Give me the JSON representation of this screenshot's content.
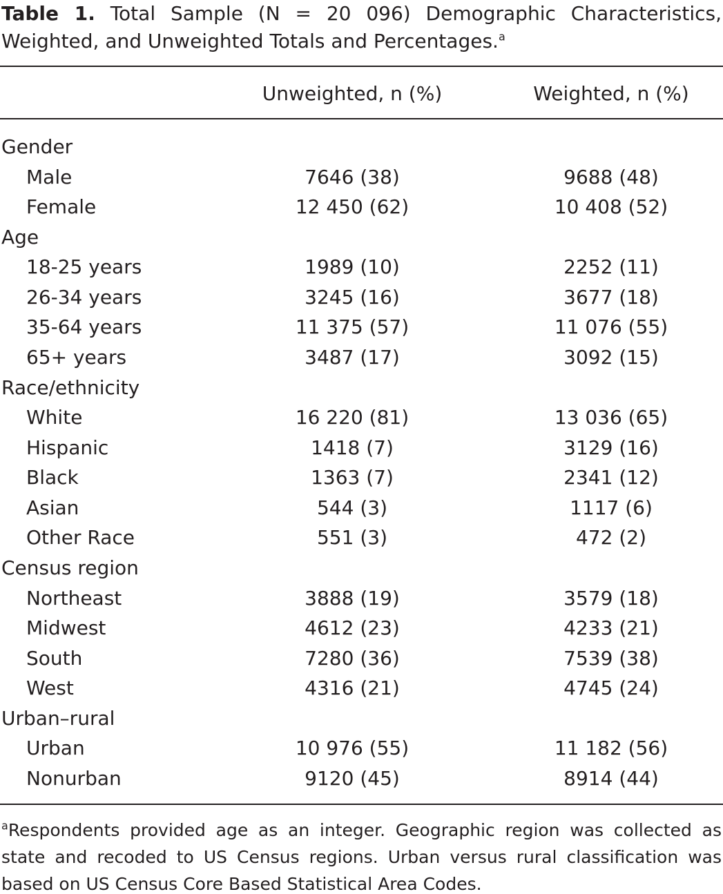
{
  "title": {
    "label": "Table 1.",
    "text": "Total Sample (N = 20 096) Demographic Characteristics, Weighted, and Unweighted Totals and Percentages.",
    "marker": "a"
  },
  "table": {
    "headers": [
      "Unweighted, n (%)",
      "Weighted, n (%)"
    ],
    "groups": [
      {
        "label": "Gender",
        "rows": [
          [
            "Male",
            "7646 (38)",
            "9688 (48)"
          ],
          [
            "Female",
            "12 450 (62)",
            "10 408 (52)"
          ]
        ]
      },
      {
        "label": "Age",
        "rows": [
          [
            "18-25 years",
            "1989 (10)",
            "2252 (11)"
          ],
          [
            "26-34 years",
            "3245 (16)",
            "3677 (18)"
          ],
          [
            "35-64 years",
            "11 375 (57)",
            "11 076 (55)"
          ],
          [
            "65+ years",
            "3487 (17)",
            "3092 (15)"
          ]
        ]
      },
      {
        "label": "Race/ethnicity",
        "rows": [
          [
            "White",
            "16 220 (81)",
            "13 036 (65)"
          ],
          [
            "Hispanic",
            "1418 (7)",
            "3129 (16)"
          ],
          [
            "Black",
            "1363 (7)",
            "2341 (12)"
          ],
          [
            "Asian",
            "544 (3)",
            "1117 (6)"
          ],
          [
            "Other Race",
            "551 (3)",
            "472 (2)"
          ]
        ]
      },
      {
        "label": "Census region",
        "rows": [
          [
            "Northeast",
            "3888 (19)",
            "3579 (18)"
          ],
          [
            "Midwest",
            "4612 (23)",
            "4233 (21)"
          ],
          [
            "South",
            "7280 (36)",
            "7539 (38)"
          ],
          [
            "West",
            "4316 (21)",
            "4745 (24)"
          ]
        ]
      },
      {
        "label": "Urban–rural",
        "rows": [
          [
            "Urban",
            "10 976 (55)",
            "11 182 (56)"
          ],
          [
            "Nonurban",
            "9120 (45)",
            "8914 (44)"
          ]
        ]
      }
    ]
  },
  "footnote": {
    "marker": "a",
    "text": "Respondents provided age as an integer. Geographic region was collected as state and recoded to US Census regions. Urban versus rural classification was based on US Census Core Based Statistical Area Codes."
  }
}
